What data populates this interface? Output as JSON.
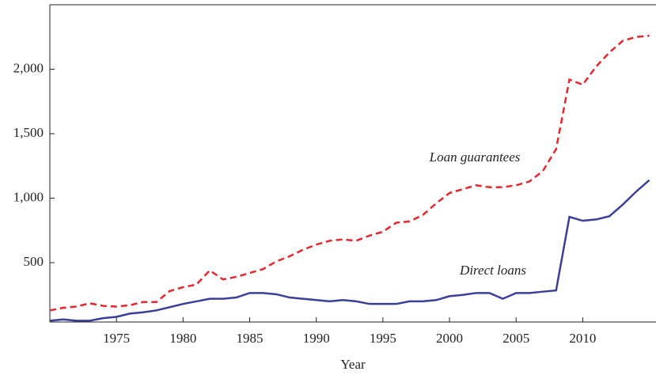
{
  "chart_data": {
    "type": "line",
    "x_label": "Year",
    "x": [
      1970,
      1971,
      1972,
      1973,
      1974,
      1975,
      1976,
      1977,
      1978,
      1979,
      1980,
      1981,
      1982,
      1983,
      1984,
      1985,
      1986,
      1987,
      1988,
      1989,
      1990,
      1991,
      1992,
      1993,
      1994,
      1995,
      1996,
      1997,
      1998,
      1999,
      2000,
      2001,
      2002,
      2003,
      2004,
      2005,
      2006,
      2007,
      2008,
      2009,
      2010,
      2011,
      2012,
      2013,
      2014,
      2015
    ],
    "series": [
      {
        "name": "Loan guarantees",
        "color": "#e8262b",
        "dashed": true,
        "values": [
          130,
          150,
          160,
          185,
          165,
          160,
          170,
          195,
          195,
          280,
          310,
          330,
          440,
          370,
          390,
          420,
          450,
          510,
          550,
          600,
          640,
          670,
          680,
          670,
          710,
          740,
          810,
          820,
          870,
          960,
          1040,
          1070,
          1100,
          1085,
          1085,
          1100,
          1130,
          1210,
          1380,
          1920,
          1880,
          2020,
          2130,
          2220,
          2250,
          2260
        ]
      },
      {
        "name": "Direct loans",
        "color": "#3b3f9c",
        "dashed": false,
        "values": [
          50,
          60,
          50,
          50,
          70,
          80,
          105,
          115,
          130,
          155,
          180,
          200,
          220,
          220,
          230,
          265,
          265,
          255,
          230,
          220,
          210,
          200,
          210,
          200,
          180,
          180,
          180,
          200,
          200,
          210,
          240,
          250,
          265,
          265,
          220,
          265,
          265,
          275,
          285,
          855,
          825,
          835,
          860,
          950,
          1050,
          1140
        ]
      }
    ],
    "xlim": [
      1970,
      2015.5
    ],
    "xticks": [
      1975,
      1980,
      1985,
      1990,
      1995,
      2000,
      2005,
      2010
    ],
    "ylim": [
      40,
      2500
    ],
    "yticks": [
      500,
      {
        "value": 1000,
        "label": "1,000"
      },
      {
        "value": 1500,
        "label": "1,500"
      },
      {
        "value": 2000,
        "label": "2,000"
      }
    ]
  }
}
